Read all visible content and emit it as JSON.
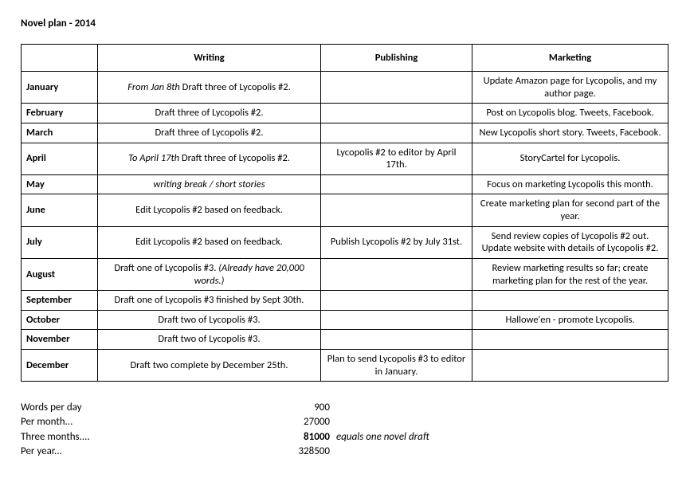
{
  "title": "Novel plan - 2014",
  "columns": {
    "month": "",
    "writing": "Writing",
    "publishing": "Publishing",
    "marketing": "Marketing"
  },
  "rows": [
    {
      "month": "January",
      "writing_prefix_italic": "From Jan 8th",
      "writing_rest": "  Draft three of Lycopolis #2.",
      "publishing": "",
      "marketing": "Update Amazon page for Lycopolis, and my author page."
    },
    {
      "month": "February",
      "writing_plain": "Draft three of Lycopolis #2.",
      "publishing": "",
      "marketing": "Post on Lycopolis blog. Tweets, Facebook."
    },
    {
      "month": "March",
      "writing_plain": "Draft three of Lycopolis #2.",
      "publishing": "",
      "marketing": "New Lycopolis short story. Tweets, Facebook."
    },
    {
      "month": "April",
      "writing_prefix_italic": "To April 17th",
      "writing_rest": "  Draft three of Lycopolis #2.",
      "publishing": "Lycopolis #2 to editor by April 17th.",
      "marketing": "StoryCartel for Lycopolis."
    },
    {
      "month": "May",
      "writing_all_italic": "writing break / short stories",
      "publishing": "",
      "marketing": "Focus on marketing Lycopolis this month."
    },
    {
      "month": "June",
      "writing_plain": "Edit Lycopolis #2 based on feedback.",
      "publishing": "",
      "marketing": "Create marketing plan for second part of the year."
    },
    {
      "month": "July",
      "writing_plain": "Edit Lycopolis #2 based on feedback.",
      "publishing": "Publish Lycopolis #2 by July 31st.",
      "marketing": "Send review copies of Lycopolis #2 out. Update website with details of Lycopolis #2."
    },
    {
      "month": "August",
      "writing_plain": "Draft one of Lycopolis #3. ",
      "writing_suffix_italic": "(Already have 20,000 words.)",
      "publishing": "",
      "marketing": "Review marketing results so far; create marketing plan for the rest of the year."
    },
    {
      "month": "September",
      "writing_plain": "Draft one of Lycopolis #3 finished by Sept 30th.",
      "publishing": "",
      "marketing": ""
    },
    {
      "month": "October",
      "writing_plain": "Draft two of Lycopolis #3.",
      "publishing": "",
      "marketing": "Hallowe'en - promote Lycopolis."
    },
    {
      "month": "November",
      "writing_plain": "Draft two of Lycopolis #3.",
      "publishing": "",
      "marketing": ""
    },
    {
      "month": "December",
      "writing_plain": "Draft two complete  by December 25th.",
      "publishing": "Plan to send Lycopolis #3 to editor in January.",
      "marketing": ""
    }
  ],
  "stats": {
    "r0": {
      "label": "Words per day",
      "value": "900",
      "note": ""
    },
    "r1": {
      "label": "Per month...",
      "value": "27000",
      "note": ""
    },
    "r2": {
      "label": "Three months....",
      "value": "81000",
      "note": "equals one novel draft",
      "bold_value": true
    },
    "r3": {
      "label": "Per year...",
      "value": "328500",
      "note": ""
    }
  }
}
